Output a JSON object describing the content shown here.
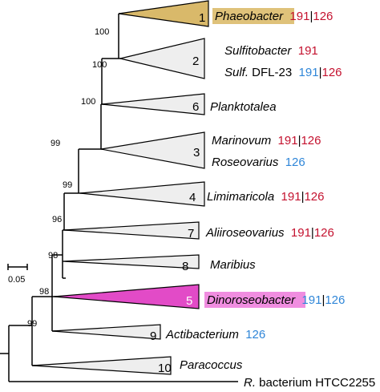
{
  "scale_bar": {
    "label": "0.05"
  },
  "colors": {
    "red": "#c4122f",
    "blue": "#2f86d8",
    "phaeo_fill": "#d9b96a",
    "phaeo_box": "#dfc27a",
    "dino_fill": "#e24bc7",
    "dino_box": "#f08de0",
    "tri_fill": "#eeeeee"
  },
  "bootstrap": [
    "100",
    "100",
    "100",
    "99",
    "99",
    "96",
    "98",
    "98",
    "99"
  ],
  "clades": [
    {
      "num": "1",
      "highlight": "phaeo",
      "lines": [
        {
          "parts": [
            {
              "t": "Phaeobacter",
              "italic": true
            },
            {
              "t": "  "
            },
            {
              "t": "191",
              "c": "red"
            },
            {
              "t": "|",
              "c": "black"
            },
            {
              "t": "126",
              "c": "red"
            }
          ]
        }
      ]
    },
    {
      "num": "2",
      "lines": [
        {
          "parts": [
            {
              "t": "Sulfitobacter",
              "italic": true
            },
            {
              "t": "  "
            },
            {
              "t": "191",
              "c": "red"
            }
          ]
        },
        {
          "parts": [
            {
              "t": "Sulf.",
              "italic": true
            },
            {
              "t": " DFL-23  "
            },
            {
              "t": "191",
              "c": "blue"
            },
            {
              "t": "|",
              "c": "black"
            },
            {
              "t": "126",
              "c": "red"
            }
          ]
        }
      ]
    },
    {
      "num": "6",
      "lines": [
        {
          "parts": [
            {
              "t": "Planktotalea",
              "italic": true
            }
          ]
        }
      ]
    },
    {
      "num": "3",
      "lines": [
        {
          "parts": [
            {
              "t": "Marinovum",
              "italic": true
            },
            {
              "t": "  "
            },
            {
              "t": "191",
              "c": "red"
            },
            {
              "t": "|",
              "c": "black"
            },
            {
              "t": "126",
              "c": "red"
            }
          ]
        },
        {
          "parts": [
            {
              "t": "Roseovarius",
              "italic": true
            },
            {
              "t": "  "
            },
            {
              "t": "126",
              "c": "blue"
            }
          ]
        }
      ]
    },
    {
      "num": "4",
      "lines": [
        {
          "parts": [
            {
              "t": "Limimaricola",
              "italic": true
            },
            {
              "t": "  "
            },
            {
              "t": "191",
              "c": "red"
            },
            {
              "t": "|",
              "c": "black"
            },
            {
              "t": "126",
              "c": "red"
            }
          ]
        }
      ]
    },
    {
      "num": "7",
      "lines": [
        {
          "parts": [
            {
              "t": "Aliiroseovarius",
              "italic": true
            },
            {
              "t": "  "
            },
            {
              "t": "191",
              "c": "red"
            },
            {
              "t": "|",
              "c": "black"
            },
            {
              "t": "126",
              "c": "red"
            }
          ]
        }
      ]
    },
    {
      "num": "8",
      "lines": [
        {
          "parts": [
            {
              "t": "Maribius",
              "italic": true
            }
          ]
        }
      ]
    },
    {
      "num": "5",
      "highlight": "dino",
      "lines": [
        {
          "parts": [
            {
              "t": "Dinoroseobacter",
              "italic": true
            },
            {
              "t": "  "
            },
            {
              "t": "191",
              "c": "blue"
            },
            {
              "t": "|",
              "c": "black"
            },
            {
              "t": "126",
              "c": "blue"
            }
          ]
        }
      ]
    },
    {
      "num": "9",
      "lines": [
        {
          "parts": [
            {
              "t": "Actibacterium",
              "italic": true
            },
            {
              "t": "  "
            },
            {
              "t": "126",
              "c": "blue"
            }
          ]
        }
      ]
    },
    {
      "num": "10",
      "lines": [
        {
          "parts": [
            {
              "t": "Paracoccus",
              "italic": true
            }
          ]
        }
      ]
    }
  ],
  "outgroup": {
    "parts": [
      {
        "t": "R.",
        "italic": true
      },
      {
        "t": " bacterium HTCC2255"
      }
    ]
  }
}
